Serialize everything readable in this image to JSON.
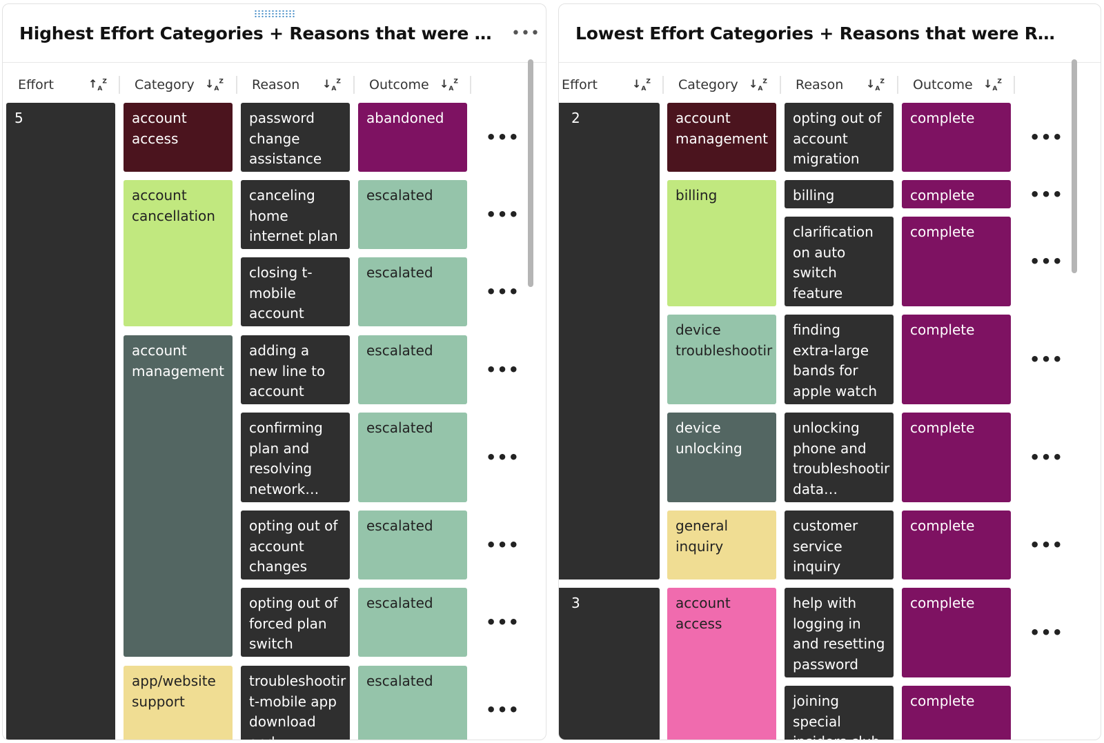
{
  "left_panel": {
    "title": "Highest Effort Categories + Reasons that were Escalate…",
    "menu_label": "•••",
    "columns": [
      "Effort",
      "Category",
      "Reason",
      "Outcome"
    ],
    "sort_icons": [
      "↑A↓Z",
      "↓A↓Z",
      "↓A↓Z",
      "↓A↓Z"
    ],
    "efforts": [
      "5"
    ],
    "categories": [
      "account access",
      "account cancellation",
      "account management",
      "app/website support"
    ],
    "rows": [
      {
        "reason": "password change assistance",
        "outcome": "abandoned"
      },
      {
        "reason": "canceling home internet plan",
        "outcome": "escalated"
      },
      {
        "reason": "closing t-mobile account",
        "outcome": "escalated"
      },
      {
        "reason": "adding a new line to account",
        "outcome": "escalated"
      },
      {
        "reason": "confirming plan and resolving network…",
        "outcome": "escalated"
      },
      {
        "reason": "opting out of account changes",
        "outcome": "escalated"
      },
      {
        "reason": "opting out of forced plan switch",
        "outcome": "escalated"
      },
      {
        "reason": "troubleshootir t-mobile app download and",
        "outcome": "escalated"
      }
    ],
    "row_menu_label": "•••"
  },
  "right_panel": {
    "title": "Lowest Effort Categories + Reasons that were Resolved",
    "columns": [
      "Effort",
      "Category",
      "Reason",
      "Outcome"
    ],
    "sort_icons": [
      "↓A↓Z",
      "↓A↓Z",
      "↓A↓Z",
      "↓A↓Z"
    ],
    "efforts": [
      "2",
      "3"
    ],
    "categories": [
      "account management",
      "billing",
      "device troubleshootir",
      "device unlocking",
      "general inquiry",
      "account access"
    ],
    "rows": [
      {
        "reason": "opting out of account migration",
        "outcome": "complete"
      },
      {
        "reason": "billing inquiry",
        "outcome": "complete"
      },
      {
        "reason": "clarification on auto switch feature and…",
        "outcome": "complete"
      },
      {
        "reason": "finding extra-large bands for apple watch and…",
        "outcome": "complete"
      },
      {
        "reason": "unlocking phone and troubleshootir data…",
        "outcome": "complete"
      },
      {
        "reason": "customer service inquiry",
        "outcome": "complete"
      },
      {
        "reason": "help with logging in and resetting password",
        "outcome": "complete"
      },
      {
        "reason": "joining special insiders club",
        "outcome": "complete"
      }
    ],
    "row_menu_label": "•••"
  },
  "colors": {
    "effort": "#2f2f2f",
    "reason": "#2f2f2f",
    "account_access_left": "#4b141e",
    "account_cancellation": "#c1e87f",
    "account_management_left": "#536662",
    "app_website_support": "#f0dd93",
    "account_management_right": "#4b141e",
    "billing": "#c1e87f",
    "device_troubleshooting": "#95c4aa",
    "device_unlocking": "#536662",
    "general_inquiry": "#f0dd93",
    "account_access_right": "#f06bae",
    "outcome_abandoned": "#7e1262",
    "outcome_escalated": "#95c4aa",
    "outcome_complete": "#7e1262"
  }
}
